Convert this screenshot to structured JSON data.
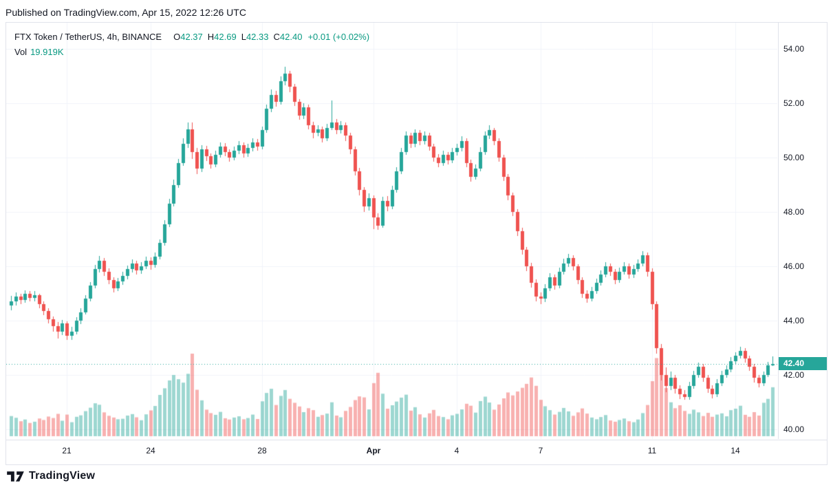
{
  "header": {
    "published_line": "Published on TradingView.com, Apr 15, 2022 12:26 UTC"
  },
  "legend": {
    "symbol_title": "FTX Token / TetherUS, 4h, BINANCE",
    "ohlc": {
      "o_label": "O",
      "o": "42.37",
      "h_label": "H",
      "h": "42.69",
      "l_label": "L",
      "l": "42.33",
      "c_label": "C",
      "c": "42.40",
      "change": "+0.01 (+0.02%)"
    },
    "volume_label": "Vol",
    "volume_value": "19.919K"
  },
  "footer": {
    "brand": "TradingView"
  },
  "colors": {
    "up": "#26a69a",
    "down": "#ef5350",
    "vol_up": "rgba(38,166,154,0.45)",
    "vol_down": "rgba(239,83,80,0.45)",
    "grid": "#f0f3fa",
    "axis_text": "#131722",
    "accent_teal": "#089981",
    "badge_bg": "#26a69a",
    "badge_text": "#ffffff",
    "border": "#e0e3eb"
  },
  "chart_data": {
    "type": "candlestick",
    "title": "FTX Token / TetherUS, 4h, BINANCE",
    "symbol": "FTX Token / TetherUS",
    "interval": "4h",
    "exchange": "BINANCE",
    "xlabel": "",
    "ylabel": "",
    "grid": true,
    "ylim": [
      39.65,
      54.96
    ],
    "volume_axis_max": 35,
    "volume_unit": "K",
    "last": {
      "open": 42.37,
      "high": 42.69,
      "low": 42.33,
      "close": 42.4,
      "label": "42.40",
      "change": "+0.01",
      "change_pct": "+0.02%"
    },
    "price_ticks": [
      {
        "value": 54,
        "label": "54.00"
      },
      {
        "value": 52,
        "label": "52.00"
      },
      {
        "value": 50,
        "label": "50.00"
      },
      {
        "value": 48,
        "label": "48.00"
      },
      {
        "value": 46,
        "label": "46.00"
      },
      {
        "value": 44,
        "label": "44.00"
      },
      {
        "value": 42,
        "label": "42.00"
      },
      {
        "value": 40,
        "label": "40.00"
      }
    ],
    "time_ticks": [
      {
        "candle_index": 12,
        "label": "21",
        "bold": false
      },
      {
        "candle_index": 30,
        "label": "24",
        "bold": false
      },
      {
        "candle_index": 54,
        "label": "28",
        "bold": false
      },
      {
        "candle_index": 78,
        "label": "Apr",
        "bold": true
      },
      {
        "candle_index": 96,
        "label": "4",
        "bold": false
      },
      {
        "candle_index": 114,
        "label": "7",
        "bold": false
      },
      {
        "candle_index": 138,
        "label": "11",
        "bold": false
      },
      {
        "candle_index": 156,
        "label": "14",
        "bold": false
      }
    ],
    "candles_format": [
      "open",
      "high",
      "low",
      "close",
      "volume_k"
    ],
    "candles": [
      [
        44.55,
        44.92,
        44.38,
        44.7,
        8.2
      ],
      [
        44.7,
        45.05,
        44.55,
        44.9,
        7.5
      ],
      [
        44.9,
        45.0,
        44.6,
        44.75,
        6.1
      ],
      [
        44.75,
        45.12,
        44.65,
        45.0,
        6.8
      ],
      [
        45.0,
        45.1,
        44.7,
        44.85,
        5.4
      ],
      [
        44.85,
        45.08,
        44.72,
        44.95,
        5.9
      ],
      [
        44.95,
        45.0,
        44.45,
        44.6,
        7.2
      ],
      [
        44.6,
        44.7,
        44.2,
        44.35,
        6.6
      ],
      [
        44.35,
        44.45,
        43.9,
        44.05,
        8.0
      ],
      [
        44.05,
        44.15,
        43.6,
        43.8,
        7.4
      ],
      [
        43.8,
        43.95,
        43.35,
        43.6,
        9.1
      ],
      [
        43.6,
        44.02,
        43.48,
        43.9,
        6.3
      ],
      [
        43.9,
        43.98,
        43.3,
        43.45,
        8.8
      ],
      [
        43.45,
        43.78,
        43.3,
        43.6,
        5.7
      ],
      [
        43.6,
        44.12,
        43.5,
        44.0,
        7.9
      ],
      [
        44.0,
        44.45,
        43.88,
        44.3,
        8.5
      ],
      [
        44.3,
        44.95,
        44.22,
        44.8,
        10.2
      ],
      [
        44.8,
        45.42,
        44.7,
        45.3,
        11.6
      ],
      [
        45.3,
        46.05,
        45.2,
        45.9,
        13.4
      ],
      [
        45.9,
        46.38,
        45.78,
        46.2,
        12.8
      ],
      [
        46.2,
        46.3,
        45.65,
        45.8,
        9.7
      ],
      [
        45.8,
        45.92,
        45.35,
        45.5,
        8.3
      ],
      [
        45.5,
        45.6,
        45.05,
        45.2,
        7.6
      ],
      [
        45.2,
        45.58,
        45.08,
        45.45,
        6.9
      ],
      [
        45.45,
        45.8,
        45.32,
        45.65,
        7.1
      ],
      [
        45.65,
        46.02,
        45.52,
        45.9,
        8.4
      ],
      [
        45.9,
        46.25,
        45.78,
        46.1,
        9.0
      ],
      [
        46.1,
        46.2,
        45.7,
        45.85,
        7.7
      ],
      [
        45.85,
        46.15,
        45.72,
        46.0,
        6.5
      ],
      [
        46.0,
        46.35,
        45.9,
        46.2,
        8.9
      ],
      [
        46.2,
        46.32,
        45.88,
        46.05,
        10.5
      ],
      [
        46.05,
        46.5,
        45.95,
        46.35,
        12.3
      ],
      [
        46.35,
        47.0,
        46.25,
        46.85,
        16.8
      ],
      [
        46.85,
        47.7,
        46.75,
        47.55,
        19.5
      ],
      [
        47.55,
        48.48,
        47.45,
        48.3,
        22.7
      ],
      [
        48.3,
        49.18,
        48.2,
        49.0,
        24.9
      ],
      [
        49.0,
        49.95,
        48.88,
        49.8,
        23.2
      ],
      [
        49.8,
        50.7,
        49.7,
        50.5,
        21.8
      ],
      [
        50.5,
        51.3,
        50.35,
        51.05,
        25.4
      ],
      [
        51.05,
        51.28,
        49.95,
        50.2,
        33.6
      ],
      [
        50.2,
        50.35,
        49.4,
        49.6,
        18.9
      ],
      [
        49.6,
        50.45,
        49.48,
        50.3,
        14.6
      ],
      [
        50.3,
        50.42,
        49.88,
        50.05,
        10.8
      ],
      [
        50.05,
        50.15,
        49.6,
        49.75,
        9.4
      ],
      [
        49.75,
        50.25,
        49.65,
        50.1,
        8.7
      ],
      [
        50.1,
        50.55,
        50.0,
        50.4,
        9.9
      ],
      [
        50.4,
        50.52,
        50.05,
        50.2,
        7.3
      ],
      [
        50.2,
        50.3,
        49.85,
        50.0,
        6.8
      ],
      [
        50.0,
        50.4,
        49.9,
        50.25,
        7.6
      ],
      [
        50.25,
        50.6,
        50.12,
        50.45,
        8.1
      ],
      [
        50.45,
        50.55,
        50.0,
        50.15,
        6.9
      ],
      [
        50.15,
        50.5,
        50.02,
        50.35,
        7.4
      ],
      [
        50.35,
        50.7,
        50.22,
        50.55,
        8.8
      ],
      [
        50.55,
        50.68,
        50.25,
        50.4,
        7.0
      ],
      [
        50.4,
        51.15,
        50.3,
        51.0,
        14.2
      ],
      [
        51.0,
        51.95,
        50.9,
        51.8,
        17.6
      ],
      [
        51.8,
        52.5,
        51.68,
        52.3,
        19.3
      ],
      [
        52.3,
        52.45,
        51.88,
        52.05,
        12.7
      ],
      [
        52.05,
        52.98,
        51.95,
        52.8,
        16.4
      ],
      [
        52.8,
        53.35,
        52.65,
        53.1,
        18.8
      ],
      [
        53.1,
        53.2,
        52.4,
        52.6,
        15.2
      ],
      [
        52.6,
        52.7,
        51.9,
        52.05,
        13.6
      ],
      [
        52.05,
        52.15,
        51.38,
        51.55,
        12.1
      ],
      [
        51.55,
        52.0,
        51.42,
        51.85,
        9.8
      ],
      [
        51.85,
        51.95,
        51.05,
        51.2,
        11.4
      ],
      [
        51.2,
        51.32,
        50.72,
        50.9,
        10.6
      ],
      [
        50.9,
        51.2,
        50.78,
        51.05,
        7.9
      ],
      [
        51.05,
        51.15,
        50.55,
        50.7,
        8.6
      ],
      [
        50.7,
        51.25,
        50.6,
        51.1,
        9.2
      ],
      [
        51.1,
        52.1,
        51.0,
        51.3,
        13.8
      ],
      [
        51.3,
        51.42,
        50.85,
        51.0,
        8.4
      ],
      [
        51.0,
        51.35,
        50.88,
        51.2,
        7.7
      ],
      [
        51.2,
        51.28,
        50.62,
        50.8,
        10.3
      ],
      [
        50.8,
        50.9,
        50.12,
        50.3,
        11.9
      ],
      [
        50.3,
        50.4,
        49.35,
        49.5,
        14.7
      ],
      [
        49.5,
        49.62,
        48.62,
        48.8,
        16.2
      ],
      [
        48.8,
        48.92,
        48.0,
        48.2,
        15.8
      ],
      [
        48.2,
        48.68,
        48.05,
        48.5,
        10.9
      ],
      [
        48.5,
        48.6,
        47.38,
        47.8,
        21.6
      ],
      [
        47.8,
        47.95,
        47.35,
        47.5,
        25.8
      ],
      [
        47.5,
        48.55,
        47.42,
        48.4,
        17.3
      ],
      [
        48.4,
        48.58,
        48.02,
        48.2,
        11.2
      ],
      [
        48.2,
        48.95,
        48.1,
        48.8,
        12.6
      ],
      [
        48.8,
        49.65,
        48.7,
        49.5,
        14.1
      ],
      [
        49.5,
        50.35,
        49.4,
        50.2,
        15.7
      ],
      [
        50.2,
        50.95,
        50.1,
        50.8,
        16.9
      ],
      [
        50.8,
        50.92,
        50.35,
        50.5,
        10.4
      ],
      [
        50.5,
        51.05,
        50.38,
        50.9,
        11.8
      ],
      [
        50.9,
        51.0,
        50.45,
        50.6,
        8.9
      ],
      [
        50.6,
        50.95,
        50.48,
        50.8,
        7.6
      ],
      [
        50.8,
        50.9,
        50.25,
        50.4,
        9.3
      ],
      [
        50.4,
        50.5,
        49.85,
        50.0,
        10.7
      ],
      [
        50.0,
        50.12,
        49.65,
        49.8,
        8.2
      ],
      [
        49.8,
        50.25,
        49.7,
        50.1,
        7.8
      ],
      [
        50.1,
        50.2,
        49.75,
        49.9,
        6.9
      ],
      [
        49.9,
        50.35,
        49.8,
        50.2,
        8.5
      ],
      [
        50.2,
        50.5,
        50.08,
        50.35,
        9.1
      ],
      [
        50.35,
        50.78,
        50.22,
        50.6,
        10.9
      ],
      [
        50.6,
        50.7,
        49.65,
        49.8,
        13.2
      ],
      [
        49.8,
        49.92,
        49.12,
        49.3,
        12.4
      ],
      [
        49.3,
        49.75,
        49.18,
        49.6,
        9.6
      ],
      [
        49.6,
        50.38,
        49.5,
        50.2,
        14.3
      ],
      [
        50.2,
        50.95,
        50.1,
        50.8,
        16.1
      ],
      [
        50.8,
        51.18,
        50.68,
        51.0,
        13.7
      ],
      [
        51.0,
        51.1,
        50.45,
        50.6,
        10.8
      ],
      [
        50.6,
        50.7,
        49.85,
        50.0,
        12.9
      ],
      [
        50.0,
        50.1,
        49.15,
        49.3,
        15.4
      ],
      [
        49.3,
        49.4,
        48.42,
        48.6,
        17.8
      ],
      [
        48.6,
        48.72,
        47.85,
        48.0,
        16.6
      ],
      [
        48.0,
        48.1,
        47.12,
        47.3,
        18.2
      ],
      [
        47.3,
        47.42,
        46.42,
        46.6,
        19.7
      ],
      [
        46.6,
        46.72,
        45.82,
        46.0,
        21.3
      ],
      [
        46.0,
        46.12,
        45.22,
        45.4,
        23.9
      ],
      [
        45.4,
        45.52,
        44.72,
        44.9,
        20.5
      ],
      [
        44.9,
        45.05,
        44.6,
        44.8,
        14.8
      ],
      [
        44.8,
        45.35,
        44.68,
        45.2,
        12.2
      ],
      [
        45.2,
        45.75,
        45.08,
        45.6,
        10.6
      ],
      [
        45.6,
        45.7,
        45.15,
        45.3,
        8.8
      ],
      [
        45.3,
        45.95,
        45.2,
        45.8,
        9.9
      ],
      [
        45.8,
        46.28,
        45.7,
        46.1,
        11.5
      ],
      [
        46.1,
        46.45,
        45.98,
        46.3,
        10.1
      ],
      [
        46.3,
        46.4,
        45.85,
        46.0,
        8.3
      ],
      [
        46.0,
        46.08,
        45.35,
        45.5,
        9.7
      ],
      [
        45.5,
        45.6,
        44.85,
        45.0,
        11.3
      ],
      [
        45.0,
        45.12,
        44.65,
        44.8,
        9.2
      ],
      [
        44.8,
        45.25,
        44.7,
        45.1,
        7.6
      ],
      [
        45.1,
        45.55,
        45.0,
        45.4,
        6.9
      ],
      [
        45.4,
        45.85,
        45.3,
        45.7,
        7.8
      ],
      [
        45.7,
        46.15,
        45.6,
        46.0,
        8.6
      ],
      [
        46.0,
        46.1,
        45.65,
        45.8,
        6.4
      ],
      [
        45.8,
        45.9,
        45.35,
        45.5,
        5.9
      ],
      [
        45.5,
        45.95,
        45.4,
        45.8,
        6.6
      ],
      [
        45.8,
        46.15,
        45.7,
        46.0,
        7.2
      ],
      [
        46.0,
        46.1,
        45.55,
        45.7,
        6.1
      ],
      [
        45.7,
        46.05,
        45.58,
        45.9,
        5.7
      ],
      [
        45.9,
        46.25,
        45.8,
        46.1,
        6.8
      ],
      [
        46.1,
        46.55,
        46.0,
        46.4,
        9.4
      ],
      [
        46.4,
        46.5,
        45.62,
        45.8,
        12.7
      ],
      [
        45.8,
        45.92,
        44.4,
        44.6,
        22.4
      ],
      [
        44.6,
        44.72,
        42.8,
        43.0,
        31.8
      ],
      [
        43.0,
        43.15,
        41.8,
        42.0,
        27.5
      ],
      [
        42.0,
        42.28,
        41.38,
        41.6,
        19.6
      ],
      [
        41.6,
        42.12,
        41.45,
        41.9,
        13.8
      ],
      [
        41.9,
        42.0,
        41.32,
        41.5,
        11.4
      ],
      [
        41.5,
        41.62,
        41.12,
        41.3,
        12.6
      ],
      [
        41.3,
        41.45,
        41.08,
        41.2,
        10.3
      ],
      [
        41.2,
        41.75,
        41.1,
        41.6,
        9.1
      ],
      [
        41.6,
        42.15,
        41.5,
        42.0,
        10.8
      ],
      [
        42.0,
        42.45,
        41.9,
        42.3,
        9.7
      ],
      [
        42.3,
        42.4,
        41.75,
        41.9,
        8.2
      ],
      [
        41.9,
        42.0,
        41.35,
        41.5,
        9.5
      ],
      [
        41.5,
        41.62,
        41.15,
        41.3,
        7.9
      ],
      [
        41.3,
        41.85,
        41.2,
        41.7,
        8.8
      ],
      [
        41.7,
        42.15,
        41.6,
        42.0,
        9.3
      ],
      [
        42.0,
        42.35,
        41.9,
        42.2,
        8.1
      ],
      [
        42.2,
        42.65,
        42.1,
        42.5,
        10.6
      ],
      [
        42.5,
        42.85,
        42.4,
        42.7,
        11.2
      ],
      [
        42.7,
        43.05,
        42.6,
        42.9,
        12.4
      ],
      [
        42.9,
        42.98,
        42.45,
        42.6,
        8.7
      ],
      [
        42.6,
        42.7,
        42.15,
        42.3,
        7.9
      ],
      [
        42.3,
        42.4,
        41.72,
        41.9,
        9.8
      ],
      [
        41.9,
        42.0,
        41.55,
        41.7,
        8.4
      ],
      [
        41.7,
        42.12,
        41.6,
        42.0,
        13.6
      ],
      [
        42.0,
        42.48,
        41.92,
        42.35,
        15.2
      ],
      [
        42.37,
        42.69,
        42.33,
        42.4,
        19.919
      ]
    ]
  }
}
